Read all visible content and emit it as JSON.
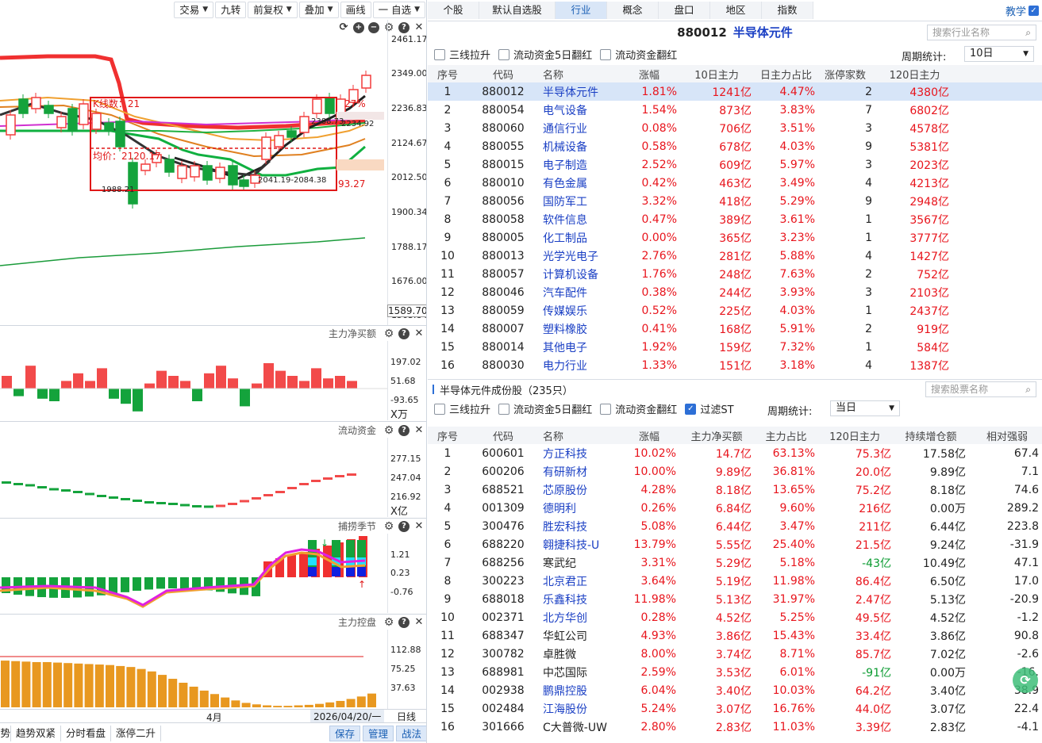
{
  "left_toolbar": {
    "items": [
      {
        "label": "交易",
        "dropdown": true
      },
      {
        "label": "九转",
        "dropdown": false
      },
      {
        "label": "前复权",
        "dropdown": true
      },
      {
        "label": "叠加",
        "dropdown": true
      },
      {
        "label": "画线",
        "dropdown": false
      },
      {
        "label": "一 自选",
        "dropdown": true
      }
    ]
  },
  "main_chart": {
    "price_axis": [
      "2461.17",
      "2349.00",
      "2236.83",
      "2124.67",
      "2012.50",
      "1900.34",
      "1788.17",
      "1676.00",
      "1563.84"
    ],
    "cursor_price": "1589.70",
    "box_label": "K线数：21",
    "box_avg": "均价：2120.17",
    "box_pct": "27%",
    "box_right_value": "93.27",
    "low_label": "1988.21",
    "range_label": "2041.19-2084.38",
    "top_label": "2234.92",
    "top_label2": "2388.73",
    "colors": {
      "up": "#f23a3a",
      "down": "#14a33c",
      "ma_red": "#f03030",
      "ma_black": "#222222",
      "ma_orange": "#f0a030",
      "ma_green": "#20b040",
      "ma_magenta": "#d030d0"
    }
  },
  "panel_net_buy": {
    "title": "主力净买额",
    "axis": [
      "197.02",
      "51.68",
      "-93.65"
    ],
    "unit": "X万",
    "values": [
      0.5,
      -0.3,
      0.9,
      -0.4,
      -0.5,
      0.3,
      0.6,
      0.3,
      0.8,
      -0.4,
      -0.6,
      -0.9,
      0.2,
      0.7,
      0.5,
      0.3,
      -0.5,
      0.6,
      0.9,
      0.4,
      -0.7,
      0.2,
      1.0,
      0.7,
      0.5,
      0.3,
      0.8,
      0.4,
      0.5,
      0.3
    ]
  },
  "panel_flow": {
    "title": "流动资金",
    "axis": [
      "277.15",
      "247.04",
      "216.92"
    ],
    "unit": "X亿",
    "values": [
      0.62,
      0.58,
      0.55,
      0.5,
      0.45,
      0.42,
      0.38,
      0.33,
      0.28,
      0.24,
      0.2,
      0.16,
      0.12,
      0.1,
      0.08,
      0.05,
      0.02,
      0.01,
      0.03,
      0.08,
      0.15,
      0.22,
      0.3,
      0.38,
      0.48,
      0.58,
      0.66,
      0.72,
      0.78,
      0.82
    ]
  },
  "panel_season": {
    "title": "捕捞季节",
    "axis": [
      "1.21",
      "0.23",
      "-0.76"
    ]
  },
  "panel_control": {
    "title": "主力控盘",
    "axis": [
      "112.88",
      "75.25",
      "37.63"
    ],
    "values": [
      0.95,
      0.94,
      0.93,
      0.92,
      0.92,
      0.91,
      0.9,
      0.89,
      0.88,
      0.87,
      0.86,
      0.84,
      0.82,
      0.78,
      0.73,
      0.66,
      0.58,
      0.5,
      0.42,
      0.34,
      0.27,
      0.2,
      0.14,
      0.09,
      0.06,
      0.04,
      0.03,
      0.03,
      0.04,
      0.05,
      0.07,
      0.1,
      0.13,
      0.17,
      0.22,
      0.28
    ]
  },
  "time_axis": {
    "month": "4月",
    "date": "2026/04/20/一",
    "period": "日线"
  },
  "bottom_bar": {
    "tabs": [
      "势双紧",
      "趋势双紧",
      "分时看盘",
      "涨停二升"
    ],
    "buttons": [
      "保存",
      "管理",
      "战法"
    ]
  },
  "right_tabs": {
    "items": [
      "个股",
      "默认自选股",
      "行业",
      "概念",
      "盘口",
      "地区",
      "指数"
    ],
    "active": "行业",
    "teach_label": "教学"
  },
  "industry_header": {
    "code": "880012",
    "name": "半导体元件",
    "search_placeholder": "搜索行业名称"
  },
  "industry_options": {
    "checks": [
      {
        "label": "三线拉升",
        "checked": false
      },
      {
        "label": "流动资金5日翻红",
        "checked": false
      },
      {
        "label": "流动资金翻红",
        "checked": false
      }
    ],
    "period_label": "周期统计:",
    "period_value": "10日"
  },
  "industry_table": {
    "columns": [
      "序号",
      "代码",
      "名称",
      "涨幅",
      "10日主力",
      "日主力占比",
      "涨停家数",
      "120日主力"
    ],
    "rows": [
      [
        "1",
        "880012",
        "半导体元件",
        "1.81%",
        "1241亿",
        "4.47%",
        "2",
        "4380亿"
      ],
      [
        "2",
        "880054",
        "电气设备",
        "1.54%",
        "873亿",
        "3.83%",
        "7",
        "6802亿"
      ],
      [
        "3",
        "880060",
        "通信行业",
        "0.08%",
        "706亿",
        "3.51%",
        "3",
        "4578亿"
      ],
      [
        "4",
        "880055",
        "机械设备",
        "0.58%",
        "678亿",
        "4.03%",
        "9",
        "5381亿"
      ],
      [
        "5",
        "880015",
        "电子制造",
        "2.52%",
        "609亿",
        "5.97%",
        "3",
        "2023亿"
      ],
      [
        "6",
        "880010",
        "有色金属",
        "0.42%",
        "463亿",
        "3.49%",
        "4",
        "4213亿"
      ],
      [
        "7",
        "880056",
        "国防军工",
        "3.32%",
        "418亿",
        "5.29%",
        "9",
        "2948亿"
      ],
      [
        "8",
        "880058",
        "软件信息",
        "0.47%",
        "389亿",
        "3.61%",
        "1",
        "3567亿"
      ],
      [
        "9",
        "880005",
        "化工制品",
        "0.00%",
        "365亿",
        "3.23%",
        "1",
        "3777亿"
      ],
      [
        "10",
        "880013",
        "光学光电子",
        "2.76%",
        "281亿",
        "5.88%",
        "4",
        "1427亿"
      ],
      [
        "11",
        "880057",
        "计算机设备",
        "1.76%",
        "248亿",
        "7.63%",
        "2",
        "752亿"
      ],
      [
        "12",
        "880046",
        "汽车配件",
        "0.38%",
        "244亿",
        "3.93%",
        "3",
        "2103亿"
      ],
      [
        "13",
        "880059",
        "传媒娱乐",
        "0.52%",
        "225亿",
        "4.03%",
        "1",
        "2437亿"
      ],
      [
        "14",
        "880007",
        "塑料橡胶",
        "0.41%",
        "168亿",
        "5.91%",
        "2",
        "919亿"
      ],
      [
        "15",
        "880014",
        "其他电子",
        "1.92%",
        "159亿",
        "7.32%",
        "1",
        "584亿"
      ],
      [
        "16",
        "880030",
        "电力行业",
        "1.33%",
        "151亿",
        "3.18%",
        "4",
        "1387亿"
      ]
    ]
  },
  "stock_section": {
    "title": "半导体元件成份股（235只）",
    "search_placeholder": "搜索股票名称",
    "checks": [
      {
        "label": "三线拉升",
        "checked": false
      },
      {
        "label": "流动资金5日翻红",
        "checked": false
      },
      {
        "label": "流动资金翻红",
        "checked": false
      },
      {
        "label": "过滤ST",
        "checked": true
      }
    ],
    "period_label": "周期统计:",
    "period_value": "当日"
  },
  "stock_table": {
    "columns": [
      "序号",
      "代码",
      "名称",
      "涨幅",
      "主力净买额",
      "主力占比",
      "120日主力",
      "持续增仓额",
      "相对强弱"
    ],
    "rows": [
      [
        "1",
        "600601",
        "方正科技",
        "10.02%",
        "14.7亿",
        "63.13%",
        "75.3亿",
        "17.58亿",
        "67.4"
      ],
      [
        "2",
        "600206",
        "有研新材",
        "10.00%",
        "9.89亿",
        "36.81%",
        "20.0亿",
        "9.89亿",
        "7.1"
      ],
      [
        "3",
        "688521",
        "芯原股份",
        "4.28%",
        "8.18亿",
        "13.65%",
        "75.2亿",
        "8.18亿",
        "74.6"
      ],
      [
        "4",
        "001309",
        "德明利",
        "0.26%",
        "6.84亿",
        "9.60%",
        "216亿",
        "0.00万",
        "289.2"
      ],
      [
        "5",
        "300476",
        "胜宏科技",
        "5.08%",
        "6.44亿",
        "3.47%",
        "211亿",
        "6.44亿",
        "223.8"
      ],
      [
        "6",
        "688220",
        "翱捷科技-U",
        "13.79%",
        "5.55亿",
        "25.40%",
        "21.5亿",
        "9.24亿",
        "-31.9"
      ],
      [
        "7",
        "688256",
        "寒武纪",
        "3.31%",
        "5.29亿",
        "5.18%",
        "-43亿",
        "10.49亿",
        "47.1"
      ],
      [
        "8",
        "300223",
        "北京君正",
        "3.64%",
        "5.19亿",
        "11.98%",
        "86.4亿",
        "6.50亿",
        "17.0"
      ],
      [
        "9",
        "688018",
        "乐鑫科技",
        "11.98%",
        "5.13亿",
        "31.97%",
        "2.47亿",
        "5.13亿",
        "-20.9"
      ],
      [
        "10",
        "002371",
        "北方华创",
        "0.28%",
        "4.52亿",
        "5.25%",
        "49.5亿",
        "4.52亿",
        "-1.2"
      ],
      [
        "11",
        "688347",
        "华虹公司",
        "4.93%",
        "3.86亿",
        "15.43%",
        "33.4亿",
        "3.86亿",
        "90.8"
      ],
      [
        "12",
        "300782",
        "卓胜微",
        "8.00%",
        "3.74亿",
        "8.71%",
        "85.7亿",
        "7.02亿",
        "-2.6"
      ],
      [
        "13",
        "688981",
        "中芯国际",
        "2.59%",
        "3.53亿",
        "6.01%",
        "-91亿",
        "0.00万",
        "-16."
      ],
      [
        "14",
        "002938",
        "鹏鼎控股",
        "6.04%",
        "3.40亿",
        "10.03%",
        "64.2亿",
        "3.40亿",
        "38.9"
      ],
      [
        "15",
        "002484",
        "江海股份",
        "5.24%",
        "3.07亿",
        "16.76%",
        "44.0亿",
        "3.07亿",
        "22.4"
      ],
      [
        "16",
        "301666",
        "C大普微-UW",
        "2.80%",
        "2.83亿",
        "11.03%",
        "3.39亿",
        "2.83亿",
        "-4.1"
      ]
    ],
    "name_colors": [
      "blue",
      "blue",
      "blue",
      "blue",
      "blue",
      "blue",
      "blk",
      "blue",
      "blue",
      "blue",
      "blk",
      "blk",
      "blk",
      "blue",
      "blue",
      "blk"
    ]
  }
}
